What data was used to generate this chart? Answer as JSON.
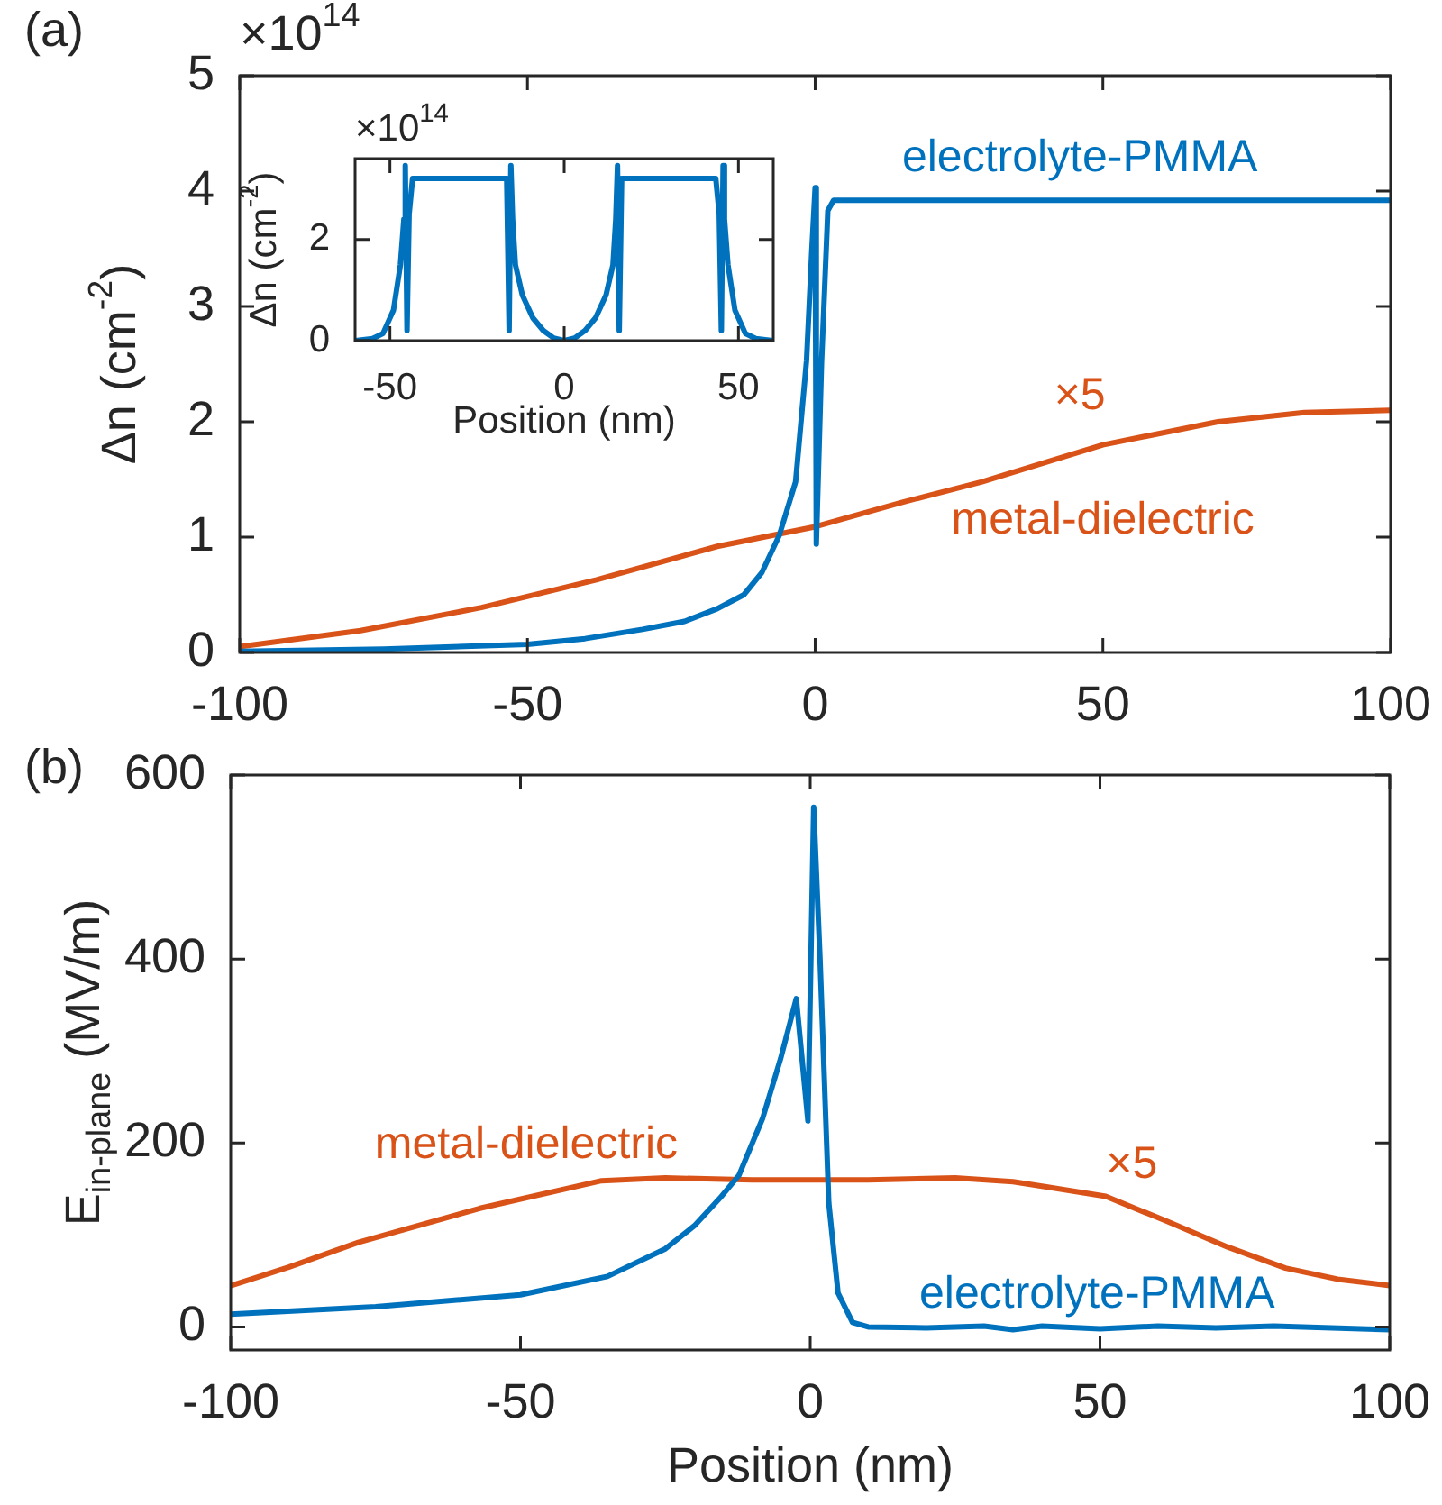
{
  "chart_data": [
    {
      "type": "line",
      "ylabel": "Δn (cm$^{-2}$)",
      "xlim": [
        -100,
        100
      ],
      "xticks": [
        -100,
        -50,
        0,
        50,
        100
      ],
      "ylim": [
        0,
        5
      ],
      "yticks": [
        0,
        1,
        2,
        3,
        4,
        5
      ],
      "annotations": [
        "(a)",
        "×10$^{14}$",
        "×5"
      ],
      "series": [
        {
          "name": "electrolyte-PMMA",
          "color": "#0072bd",
          "x": [
            -100,
            -75,
            -50,
            -40,
            -30,
            -22.7,
            -17,
            -12.4,
            -9.3,
            -6.2,
            -3.4,
            -1.5,
            -0.6,
            0,
            0.2,
            1.1,
            2.2,
            3.2,
            5,
            100
          ],
          "values": [
            0.01,
            0.03,
            0.07,
            0.12,
            0.2,
            0.27,
            0.38,
            0.5,
            0.69,
            1.02,
            1.48,
            2.53,
            3.47,
            4.03,
            0.94,
            2.5,
            3.83,
            3.92,
            3.92,
            3.92
          ]
        },
        {
          "name": "metal-dielectric",
          "color": "#d95319",
          "x": [
            -100,
            -79,
            -58,
            -38,
            -17,
            0,
            15,
            29,
            50,
            70,
            85,
            100
          ],
          "values": [
            0.05,
            0.19,
            0.39,
            0.63,
            0.92,
            1.09,
            1.3,
            1.48,
            1.8,
            2.0,
            2.08,
            2.1
          ]
        }
      ]
    },
    {
      "type": "line",
      "xlabel": "Position (nm)",
      "ylabel": "Δn (cm$^{-2}$)",
      "xlim": [
        -60,
        60
      ],
      "xticks": [
        -50,
        0,
        50
      ],
      "ylim": [
        0,
        3.6
      ],
      "yticks": [
        0,
        2
      ],
      "annotations": [
        "×10$^{14}$"
      ],
      "series": [
        {
          "color": "#0072bd",
          "x": [
            -60,
            -55,
            -52,
            -49,
            -47,
            -46,
            -45.6,
            -45.1,
            -44.5,
            -43.5,
            -16.5,
            -15.8,
            -15.3,
            -14.8,
            -14,
            -12,
            -9,
            -6,
            -3,
            0,
            3,
            6,
            9,
            12,
            14,
            14.8,
            15.3,
            15.8,
            16.5,
            43.5,
            44.5,
            45.1,
            45.6,
            46,
            47,
            49,
            52,
            55,
            60
          ],
          "values": [
            0,
            0.04,
            0.14,
            0.6,
            1.5,
            2.4,
            3.46,
            0.2,
            2.5,
            3.21,
            3.21,
            0.2,
            3.46,
            2.4,
            1.5,
            0.9,
            0.45,
            0.2,
            0.05,
            0,
            0.05,
            0.2,
            0.45,
            0.9,
            1.5,
            2.4,
            3.46,
            0.2,
            3.21,
            3.21,
            2.5,
            0.2,
            3.46,
            2.4,
            1.5,
            0.6,
            0.14,
            0.04,
            0
          ]
        }
      ]
    },
    {
      "type": "line",
      "xlabel": "Position (nm)",
      "ylabel": "E$_{in-plane}$ (MV/m)",
      "xlim": [
        -100,
        100
      ],
      "xticks": [
        -100,
        -50,
        0,
        50,
        100
      ],
      "ylim": [
        -25,
        600
      ],
      "yticks": [
        0,
        200,
        400,
        600
      ],
      "annotations": [
        "(b)",
        "×5"
      ],
      "series": [
        {
          "name": "electrolyte-PMMA",
          "color": "#0072bd",
          "x": [
            -100,
            -75,
            -50,
            -35,
            -25,
            -20,
            -15.6,
            -12.3,
            -8.2,
            -5.1,
            -2.4,
            -0.4,
            0.6,
            1.7,
            3.2,
            4.8,
            7.3,
            10,
            20,
            30,
            35,
            40,
            50,
            60,
            70,
            80,
            90,
            100
          ],
          "values": [
            14,
            22,
            35,
            55,
            85,
            110,
            140,
            165,
            227,
            292,
            357,
            224,
            565,
            398,
            135,
            37,
            5,
            0,
            -1,
            1,
            -3,
            1,
            -2,
            1,
            -1,
            1,
            -1,
            -3
          ]
        },
        {
          "name": "metal-dielectric",
          "color": "#d95319",
          "x": [
            -100,
            -90,
            -78,
            -57,
            -36,
            -25,
            -10,
            0,
            10,
            25,
            35,
            41,
            51,
            61.5,
            72,
            82,
            91,
            100
          ],
          "values": [
            45,
            65,
            92,
            129,
            159,
            162,
            160,
            160,
            160,
            162,
            158,
            152,
            142,
            115,
            87,
            64,
            52,
            45
          ]
        }
      ]
    }
  ]
}
